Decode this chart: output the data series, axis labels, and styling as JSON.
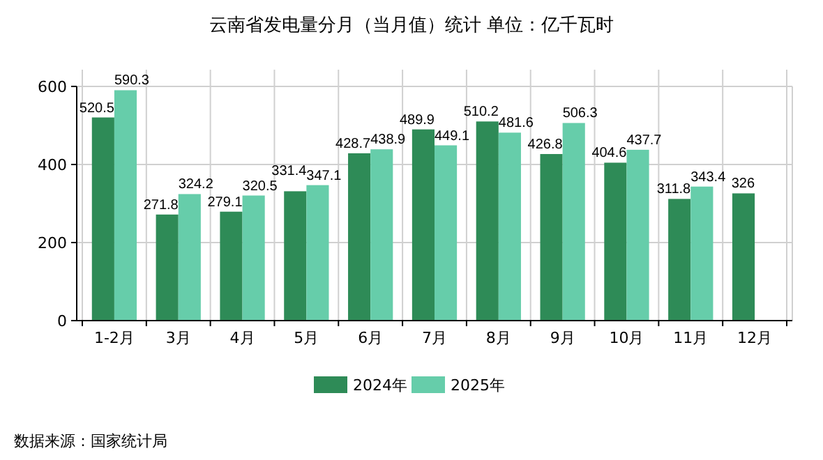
{
  "chart_data": {
    "type": "bar",
    "title": "云南省发电量分月（当月值）统计  单位：亿千瓦时",
    "categories": [
      "1-2月",
      "3月",
      "4月",
      "5月",
      "6月",
      "7月",
      "8月",
      "9月",
      "10月",
      "11月",
      "12月"
    ],
    "series": [
      {
        "name": "2024年",
        "color": "#2e8b57",
        "values": [
          520.5,
          271.8,
          279.1,
          331.4,
          428.7,
          489.9,
          510.2,
          426.8,
          404.6,
          311.8,
          326
        ]
      },
      {
        "name": "2025年",
        "color": "#66cdaa",
        "values": [
          590.3,
          324.2,
          320.5,
          347.1,
          438.9,
          449.1,
          481.6,
          506.3,
          437.7,
          343.4,
          null
        ]
      }
    ],
    "ylim": [
      0,
      600
    ],
    "yticks": [
      0,
      200,
      400,
      600
    ],
    "grid": true,
    "legend": "bottom",
    "data_labels": true,
    "annotations": [
      "数据来源：国家统计局"
    ]
  }
}
